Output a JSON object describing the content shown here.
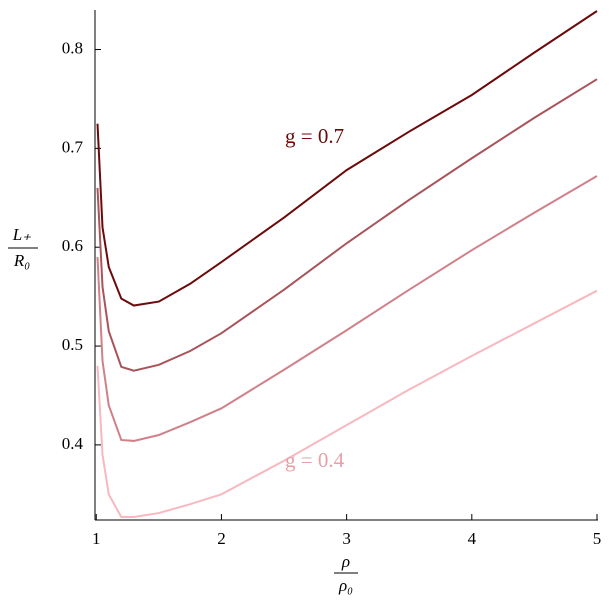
{
  "chart_data": {
    "type": "line",
    "x_label": {
      "numerator": "ρ",
      "denominator": "ρ₀"
    },
    "y_label": {
      "numerator": "L₊",
      "denominator": "R₀"
    },
    "x": [
      1.01,
      1.05,
      1.1,
      1.2,
      1.3,
      1.5,
      1.75,
      2,
      2.5,
      3,
      3.5,
      4,
      4.5,
      5
    ],
    "series": [
      {
        "color": "#6b0a0a",
        "values": [
          0.725,
          0.62,
          0.58,
          0.548,
          0.541,
          0.545,
          0.563,
          0.585,
          0.63,
          0.678,
          0.717,
          0.754,
          0.797,
          0.839
        ]
      },
      {
        "color": "#a8545a",
        "values": [
          0.66,
          0.56,
          0.515,
          0.479,
          0.475,
          0.481,
          0.495,
          0.513,
          0.557,
          0.604,
          0.648,
          0.69,
          0.731,
          0.77
        ]
      },
      {
        "color": "#d08088",
        "values": [
          0.59,
          0.485,
          0.44,
          0.405,
          0.404,
          0.41,
          0.423,
          0.437,
          0.476,
          0.516,
          0.557,
          0.597,
          0.635,
          0.672
        ]
      },
      {
        "color": "#f8b8c0",
        "values": [
          0.48,
          0.39,
          0.35,
          0.327,
          0.327,
          0.331,
          0.34,
          0.35,
          0.384,
          0.42,
          0.456,
          0.49,
          0.523,
          0.556
        ]
      }
    ],
    "annotations": [
      {
        "text": "g = 0.7",
        "color": "#6b0a0a"
      },
      {
        "text": "g = 0.4",
        "color": "#e8a0a8"
      }
    ],
    "xlim": [
      0.99,
      5
    ],
    "xticks": [
      1,
      2,
      3,
      4,
      5
    ],
    "ylim": [
      0.324,
      0.84
    ],
    "yticks": [
      0.4,
      0.5,
      0.6,
      0.7,
      0.8
    ]
  }
}
